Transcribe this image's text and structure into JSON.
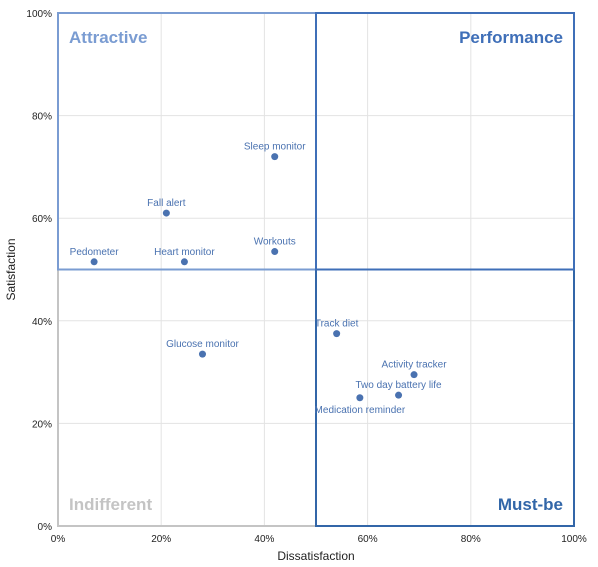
{
  "chart_data": {
    "type": "scatter",
    "xlabel": "Dissatisfaction",
    "ylabel": "Satisfaction",
    "xlim": [
      0,
      100
    ],
    "ylim": [
      0,
      100
    ],
    "x_ticks": [
      "0%",
      "20%",
      "40%",
      "60%",
      "80%",
      "100%"
    ],
    "y_ticks": [
      "0%",
      "20%",
      "40%",
      "60%",
      "80%",
      "100%"
    ],
    "grid": true,
    "quadrants": [
      {
        "label": "Attractive",
        "x": [
          0,
          50
        ],
        "y": [
          50,
          100
        ],
        "color": "#7a9cd2",
        "label_position": "top-left"
      },
      {
        "label": "Performance",
        "x": [
          50,
          100
        ],
        "y": [
          50,
          100
        ],
        "color": "#3f6fb8",
        "label_position": "top-right"
      },
      {
        "label": "Indifferent",
        "x": [
          0,
          50
        ],
        "y": [
          0,
          50
        ],
        "color": "#c4c4c4",
        "label_position": "bottom-left"
      },
      {
        "label": "Must-be",
        "x": [
          50,
          100
        ],
        "y": [
          0,
          50
        ],
        "color": "#3266a8",
        "label_position": "bottom-right"
      }
    ],
    "points_color": "#4a72b0",
    "points": [
      {
        "label": "Sleep monitor",
        "x": 42,
        "y": 72
      },
      {
        "label": "Fall alert",
        "x": 21,
        "y": 61
      },
      {
        "label": "Workouts",
        "x": 42,
        "y": 53.5
      },
      {
        "label": "Pedometer",
        "x": 7,
        "y": 51.5
      },
      {
        "label": "Heart monitor",
        "x": 24.5,
        "y": 51.5
      },
      {
        "label": "Track diet",
        "x": 54,
        "y": 37.5
      },
      {
        "label": "Glucose monitor",
        "x": 28,
        "y": 33.5
      },
      {
        "label": "Activity tracker",
        "x": 69,
        "y": 29.5
      },
      {
        "label": "Two day battery life",
        "x": 66,
        "y": 25.5
      },
      {
        "label": "Medication reminder",
        "x": 58.5,
        "y": 25
      }
    ]
  }
}
